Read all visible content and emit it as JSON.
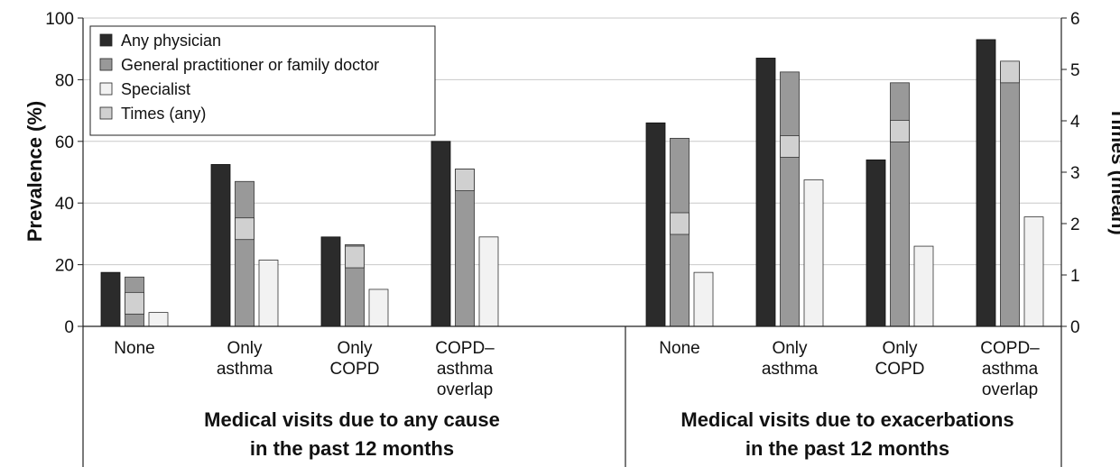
{
  "chart_data": {
    "type": "bar",
    "ylabel": "Prevalence (%)",
    "y2label": "Times (mean)",
    "ylim": [
      0,
      100
    ],
    "y2lim": [
      0,
      6
    ],
    "yticks": [
      "0",
      "20",
      "40",
      "60",
      "80",
      "100"
    ],
    "y2ticks": [
      "0",
      "1",
      "2",
      "3",
      "4",
      "5",
      "6"
    ],
    "grid": true,
    "legend_position": "top-left",
    "legend": [
      {
        "name": "Any physician",
        "color": "#2b2b2b"
      },
      {
        "name": "General practitioner or family doctor",
        "color": "#999999"
      },
      {
        "name": "Specialist",
        "color": "#f2f2f2"
      },
      {
        "name": "Times (any)",
        "color": "#d0d0d0"
      }
    ],
    "groups": [
      {
        "title_lines": [
          "Medical visits due to any cause",
          "in the past 12 months"
        ],
        "categories": [
          {
            "label_lines": [
              "None"
            ],
            "any_physician": 17.5,
            "gp": 16,
            "specialist": 4.5,
            "times": 0.45
          },
          {
            "label_lines": [
              "Only",
              "asthma"
            ],
            "any_physician": 52.5,
            "gp": 47,
            "specialist": 21.5,
            "times": 1.9
          },
          {
            "label_lines": [
              "Only",
              "COPD"
            ],
            "any_physician": 29,
            "gp": 26.5,
            "specialist": 12,
            "times": 1.35
          },
          {
            "label_lines": [
              "COPD–",
              "asthma",
              "overlap"
            ],
            "any_physician": 60,
            "gp": 51,
            "specialist": 29,
            "times": 2.85
          }
        ]
      },
      {
        "title_lines": [
          "Medical visits due to exacerbations",
          "in the past 12 months"
        ],
        "categories": [
          {
            "label_lines": [
              "None"
            ],
            "any_physician": 66,
            "gp": 61,
            "specialist": 17.5,
            "times": 2.0
          },
          {
            "label_lines": [
              "Only",
              "asthma"
            ],
            "any_physician": 87,
            "gp": 82.5,
            "specialist": 47.5,
            "times": 3.5
          },
          {
            "label_lines": [
              "Only",
              "COPD"
            ],
            "any_physician": 54,
            "gp": 79,
            "specialist": 26,
            "times": 3.8
          },
          {
            "label_lines": [
              "COPD–",
              "asthma",
              "overlap"
            ],
            "any_physician": 93,
            "gp": 85.5,
            "specialist": 35.5,
            "times": 4.95
          }
        ]
      }
    ]
  }
}
